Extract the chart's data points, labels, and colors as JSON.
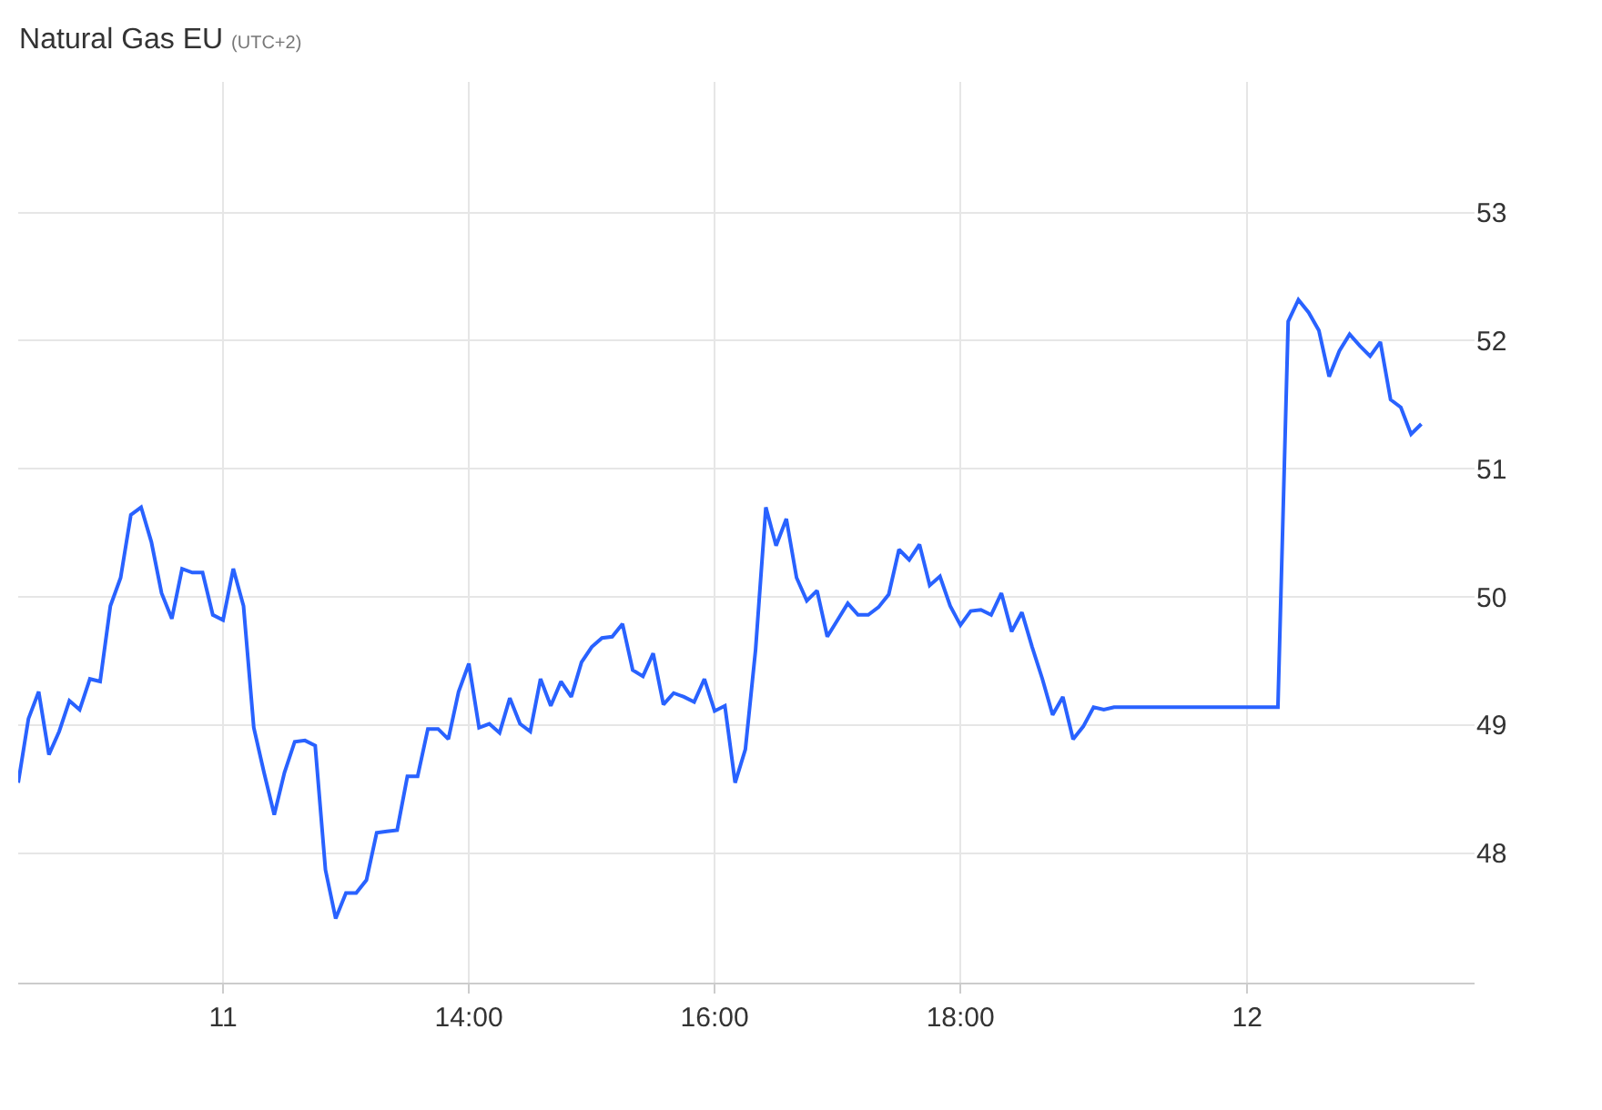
{
  "chart_data": {
    "type": "line",
    "title": "Natural Gas EU",
    "subtitle": "(UTC+2)",
    "categories": [
      null,
      null,
      null,
      null,
      null,
      null,
      null,
      null,
      null,
      null,
      null,
      null,
      null,
      null,
      null,
      null,
      null,
      null,
      null,
      null,
      "11",
      null,
      null,
      null,
      null,
      null,
      null,
      null,
      null,
      null,
      null,
      null,
      null,
      null,
      null,
      null,
      null,
      null,
      null,
      null,
      null,
      null,
      null,
      null,
      "14:00",
      null,
      null,
      null,
      null,
      null,
      null,
      null,
      null,
      null,
      null,
      null,
      null,
      null,
      null,
      null,
      null,
      null,
      null,
      null,
      null,
      null,
      null,
      null,
      "16:00",
      null,
      null,
      null,
      null,
      null,
      null,
      null,
      null,
      null,
      null,
      null,
      null,
      null,
      null,
      null,
      null,
      null,
      null,
      null,
      null,
      null,
      null,
      null,
      "18:00",
      null,
      null,
      null,
      null,
      null,
      null,
      null,
      null,
      null,
      null,
      null,
      null,
      null,
      null,
      null,
      null,
      null,
      null,
      null,
      null,
      null,
      null,
      null,
      null,
      null,
      null,
      null,
      "12",
      null,
      null,
      null,
      null,
      null,
      null,
      null,
      null,
      null,
      null,
      null,
      null,
      null,
      null,
      null,
      null,
      null
    ],
    "series": [
      {
        "color": "#2962ff",
        "values": [
          48.55,
          49.05,
          49.26,
          48.77,
          48.95,
          49.19,
          49.12,
          49.36,
          49.34,
          49.93,
          50.15,
          50.64,
          50.7,
          50.43,
          50.03,
          49.83,
          50.22,
          50.19,
          50.19,
          49.86,
          49.82,
          50.22,
          49.93,
          48.98,
          48.63,
          48.3,
          48.63,
          48.87,
          48.88,
          48.84,
          47.87,
          47.49,
          47.69,
          47.69,
          47.79,
          48.16,
          48.17,
          48.18,
          48.6,
          48.6,
          48.97,
          48.97,
          48.89,
          49.26,
          49.48,
          48.98,
          49.01,
          48.94,
          49.21,
          49.01,
          48.95,
          49.36,
          49.15,
          49.34,
          49.22,
          49.49,
          49.61,
          49.68,
          49.69,
          49.79,
          49.43,
          49.38,
          49.56,
          49.16,
          49.25,
          49.22,
          49.18,
          49.36,
          49.11,
          49.15,
          48.55,
          48.81,
          49.59,
          50.7,
          50.4,
          50.61,
          50.15,
          49.97,
          50.05,
          49.69,
          49.82,
          49.95,
          49.86,
          49.86,
          49.92,
          50.02,
          50.37,
          50.29,
          50.41,
          50.09,
          50.16,
          49.93,
          49.78,
          49.89,
          49.9,
          49.86,
          50.03,
          49.73,
          49.88,
          49.61,
          49.36,
          49.08,
          49.22,
          48.89,
          48.99,
          49.14,
          49.12,
          49.14,
          49.14,
          49.14,
          49.14,
          49.14,
          49.14,
          49.14,
          49.14,
          49.14,
          49.14,
          49.14,
          49.14,
          49.14,
          49.14,
          49.14,
          49.14,
          49.14,
          52.15,
          52.32,
          52.22,
          52.08,
          51.72,
          51.92,
          52.05,
          51.96,
          51.88,
          51.99,
          51.54,
          51.48,
          51.27,
          51.35
        ]
      }
    ],
    "ylim": [
      46.99,
      54.02
    ],
    "yticks": [
      48,
      49,
      50,
      51,
      52,
      53
    ],
    "grid": true,
    "legend": false,
    "marker": "none",
    "line_style": "solid"
  }
}
